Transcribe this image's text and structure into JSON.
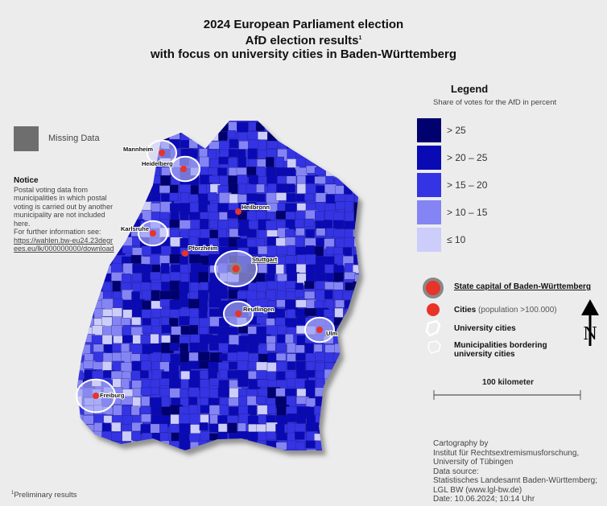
{
  "title": {
    "line1": "2024 European Parliament election",
    "line2": "AfD election results",
    "line2_mark": "1",
    "line3": "with focus on university cities in Baden-Württemberg"
  },
  "missing": {
    "label": "Missing Data",
    "color": "#6e6e6e"
  },
  "notice": {
    "heading": "Notice",
    "text": "Postal voting data from municipalities in which postal voting is carried out by another municipality are not included here.",
    "further": "For further information see:",
    "link": "https://wahlen.bw-eu24.23degrees.eu/lk/000000000/download"
  },
  "legend": {
    "title": "Legend",
    "subtitle": "Share of votes for the AfD in percent",
    "classes": [
      {
        "label": "> 25",
        "color": "#00006e"
      },
      {
        "label": "> 20 – 25",
        "color": "#0a0ab4"
      },
      {
        "label": "> 15  – 20",
        "color": "#3434e4"
      },
      {
        "label": "> 10  – 15",
        "color": "#8484f4"
      },
      {
        "label": "≤ 10",
        "color": "#cccdfa"
      }
    ],
    "symbols": {
      "capital": "State capital of Baden-Württemberg",
      "cities_bold": "Cities",
      "cities_note": "(population >100.000)",
      "university": "University cities",
      "bordering": "Municipalities bordering university cities"
    }
  },
  "scale": {
    "label": "100 kilometer"
  },
  "north": {
    "label": "N"
  },
  "cities": [
    {
      "name": "Mannheim"
    },
    {
      "name": "Heidelberg"
    },
    {
      "name": "Heilbronn"
    },
    {
      "name": "Karlsruhe"
    },
    {
      "name": "Pforzheim"
    },
    {
      "name": "Stuttgart",
      "capital": true
    },
    {
      "name": "Reutlingen"
    },
    {
      "name": "Ulm"
    },
    {
      "name": "Freiburg"
    }
  ],
  "credits": [
    "Cartography by",
    "Institut für Rechtsextremismusforschung,",
    "University of Tübingen",
    "Data source:",
    "Statistisches Landesamt Baden-Württemberg;",
    "LGL BW (www.lgl-bw.de)",
    "Date: 10.06.2024; 10:14 Uhr"
  ],
  "footnote": "Preliminary results",
  "footnote_mark": "1",
  "accent": "#e8332a"
}
